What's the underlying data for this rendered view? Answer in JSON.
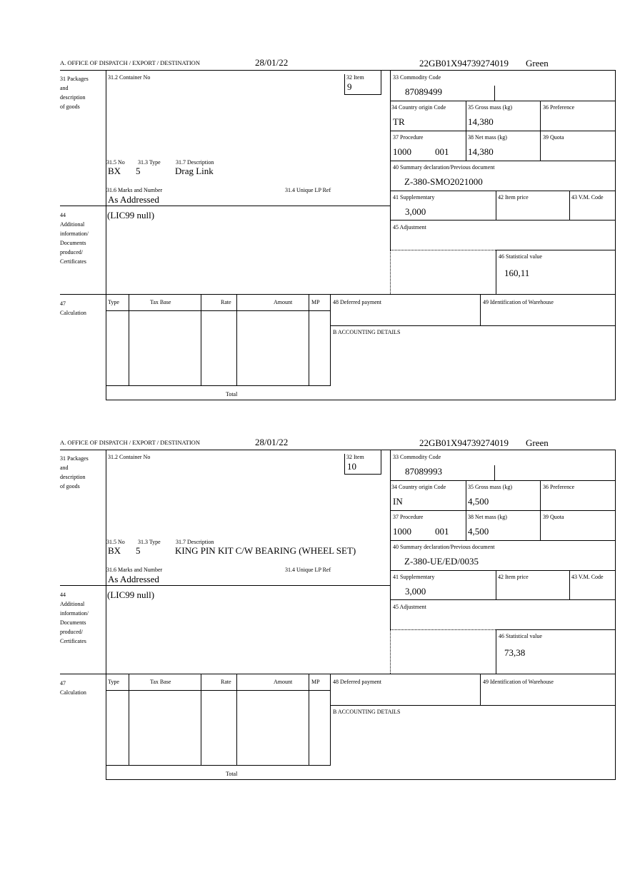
{
  "labels": {
    "office": "A.  OFFICE OF DISPATCH / EXPORT / DESTINATION",
    "b31": [
      "31 Packages",
      "and",
      "description",
      "of goods"
    ],
    "container": "31.2 Container No",
    "item": "32 Item",
    "no": "31.5 No",
    "type": "31.3 Type",
    "description": "31.7 Description",
    "marks": "31.6 Marks and Number",
    "unique": "31.4 Unique LP Ref",
    "b44": [
      "44",
      "Additional",
      "information/",
      "Documents",
      "produced/",
      "Certificates"
    ],
    "commodity": "33 Commodity Code",
    "country": "34 Country origin Code",
    "gross": "35 Gross mass (kg)",
    "preference": "36 Preference",
    "procedure": "37 Procedure",
    "net": "38 Net mass (kg)",
    "quota": "39 Quota",
    "summary": "40 Summary declaration/Previous document",
    "supplementary": "41 Supplementary",
    "item_price": "42 Item price",
    "vm_code": "43 V.M. Code",
    "adjustment": "45 Adjustment",
    "statistical": "46 Statistical value",
    "b47": [
      "47",
      "Calculation"
    ],
    "calc_cols": [
      "Type",
      "Tax Base",
      "Rate",
      "Amount",
      "MP"
    ],
    "total": "Total",
    "deferred": "48 Deferred payment",
    "warehouse": "49 Identification of Warehouse",
    "accounting": "B ACCOUNTING DETAILS"
  },
  "forms": [
    {
      "date": "28/01/22",
      "reference": "22GB01X94739274019",
      "route": "Green",
      "item": "9",
      "package_kind": "BX",
      "package_count": "5",
      "description": "Drag Link",
      "marks": "As Addressed",
      "additional_info": "(LIC99 null)",
      "commodity_code": "87089499",
      "country_origin": "TR",
      "gross_mass": "14,380",
      "procedure": "1000",
      "procedure_extra": "001",
      "net_mass": "14,380",
      "previous_document": "Z-380-SMO2021000",
      "supplementary": "3,000",
      "statistical_value": "160,11"
    },
    {
      "date": "28/01/22",
      "reference": "22GB01X94739274019",
      "route": "Green",
      "item": "10",
      "package_kind": "BX",
      "package_count": "5",
      "description": "KING PIN KIT C/W BEARING (WHEEL SET)",
      "marks": "As Addressed",
      "additional_info": "(LIC99 null)",
      "commodity_code": "87089993",
      "country_origin": "IN",
      "gross_mass": "4,500",
      "procedure": "1000",
      "procedure_extra": "001",
      "net_mass": "4,500",
      "previous_document": "Z-380-UE/ED/0035",
      "supplementary": "3,000",
      "statistical_value": "73,38"
    }
  ]
}
